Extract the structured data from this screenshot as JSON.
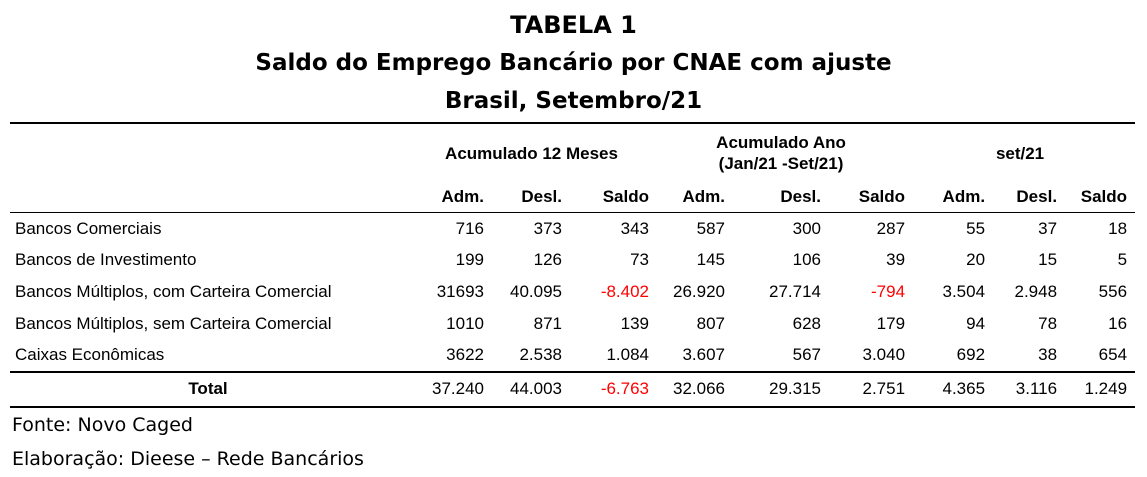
{
  "title": {
    "line1": "TABELA 1",
    "line2": "Saldo do Emprego Bancário por CNAE com ajuste",
    "line3": "Brasil, Setembro/21"
  },
  "groups": {
    "g1": "Acumulado 12 Meses",
    "g2_line1": "Acumulado Ano",
    "g2_line2": "(Jan/21 -Set/21)",
    "g3": "set/21"
  },
  "columns": [
    "Adm.",
    "Desl.",
    "Saldo",
    "Adm.",
    "Desl.",
    "Saldo",
    "Adm.",
    "Desl.",
    "Saldo"
  ],
  "rows": [
    {
      "label": "Bancos Comerciais",
      "values": [
        "716",
        "373",
        "343",
        "587",
        "300",
        "287",
        "55",
        "37",
        "18"
      ]
    },
    {
      "label": "Bancos de Investimento",
      "values": [
        "199",
        "126",
        "73",
        "145",
        "106",
        "39",
        "20",
        "15",
        "5"
      ]
    },
    {
      "label": "Bancos Múltiplos, com Carteira Comercial",
      "values": [
        "31693",
        "40.095",
        "-8.402",
        "26.920",
        "27.714",
        "-794",
        "3.504",
        "2.948",
        "556"
      ]
    },
    {
      "label": "Bancos Múltiplos, sem Carteira Comercial",
      "values": [
        "1010",
        "871",
        "139",
        "807",
        "628",
        "179",
        "94",
        "78",
        "16"
      ]
    },
    {
      "label": "Caixas Econômicas",
      "values": [
        "3622",
        "2.538",
        "1.084",
        "3.607",
        "567",
        "3.040",
        "692",
        "38",
        "654"
      ]
    }
  ],
  "total": {
    "label": "Total",
    "values": [
      "37.240",
      "44.003",
      "-6.763",
      "32.066",
      "29.315",
      "2.751",
      "4.365",
      "3.116",
      "1.249"
    ]
  },
  "negative_color": "#ff0000",
  "footer": {
    "source": "Fonte: Novo Caged",
    "author": "Elaboração: Dieese – Rede Bancários"
  }
}
